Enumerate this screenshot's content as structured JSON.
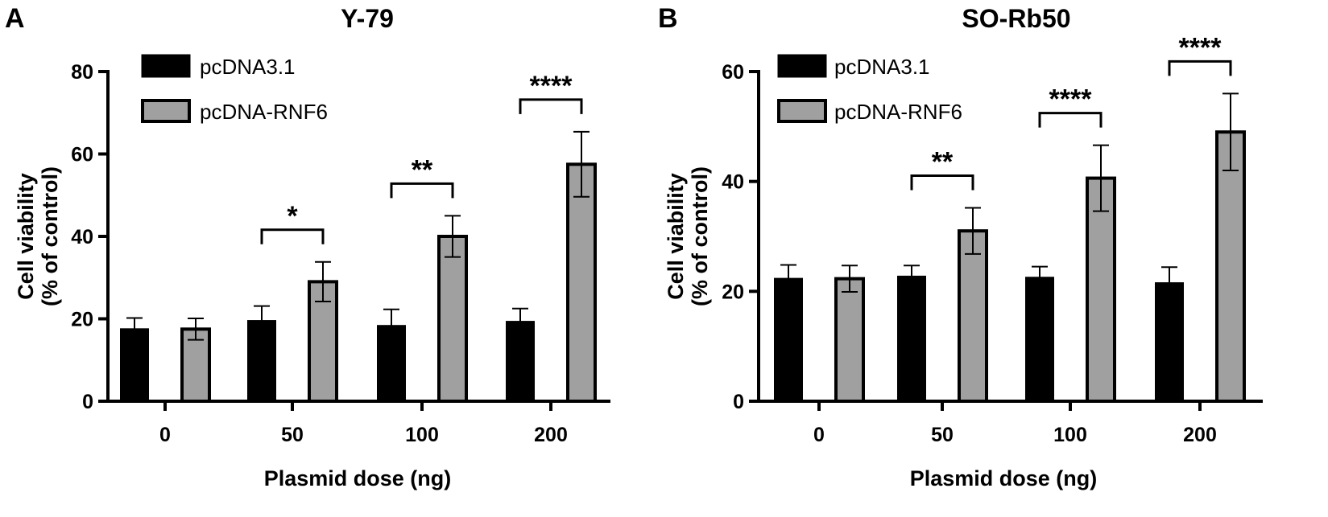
{
  "chart_data": [
    {
      "panel": "A",
      "type": "bar",
      "title": "Y-79",
      "xlabel": "Plasmid dose (ng)",
      "ylabel_line1": "Cell viability",
      "ylabel_line2": "(% of control)",
      "categories": [
        "0",
        "50",
        "100",
        "200"
      ],
      "ylim": [
        0,
        80
      ],
      "yticks": [
        0,
        20,
        40,
        60,
        80
      ],
      "grid": false,
      "legend_position": "top-left",
      "series": [
        {
          "name": "pcDNA3.1",
          "color": "#000000",
          "values": [
            17.5,
            19.5,
            18.3,
            19.3
          ],
          "errors": [
            2.7,
            3.6,
            4.0,
            3.2
          ]
        },
        {
          "name": "pcDNA-RNF6",
          "color": "#a0a0a0",
          "values": [
            17.5,
            29.0,
            40.0,
            57.5
          ],
          "errors": [
            2.6,
            4.8,
            5.0,
            7.9
          ]
        }
      ],
      "significance": [
        {
          "category": "0",
          "label": ""
        },
        {
          "category": "50",
          "label": "*"
        },
        {
          "category": "100",
          "label": "**"
        },
        {
          "category": "200",
          "label": "****"
        }
      ]
    },
    {
      "panel": "B",
      "type": "bar",
      "title": "SO-Rb50",
      "xlabel": "Plasmid dose (ng)",
      "ylabel_line1": "Cell viability",
      "ylabel_line2": "(% of control)",
      "categories": [
        "0",
        "50",
        "100",
        "200"
      ],
      "ylim": [
        0,
        60
      ],
      "yticks": [
        0,
        20,
        40,
        60
      ],
      "grid": false,
      "legend_position": "top-left",
      "series": [
        {
          "name": "pcDNA3.1",
          "color": "#000000",
          "values": [
            22.3,
            22.7,
            22.5,
            21.5
          ],
          "errors": [
            2.5,
            2.0,
            2.0,
            2.9
          ]
        },
        {
          "name": "pcDNA-RNF6",
          "color": "#a0a0a0",
          "values": [
            22.3,
            31.0,
            40.6,
            49.0
          ],
          "errors": [
            2.4,
            4.2,
            6.0,
            7.0
          ]
        }
      ],
      "significance": [
        {
          "category": "0",
          "label": ""
        },
        {
          "category": "50",
          "label": "**"
        },
        {
          "category": "100",
          "label": "****"
        },
        {
          "category": "200",
          "label": "****"
        }
      ]
    }
  ]
}
